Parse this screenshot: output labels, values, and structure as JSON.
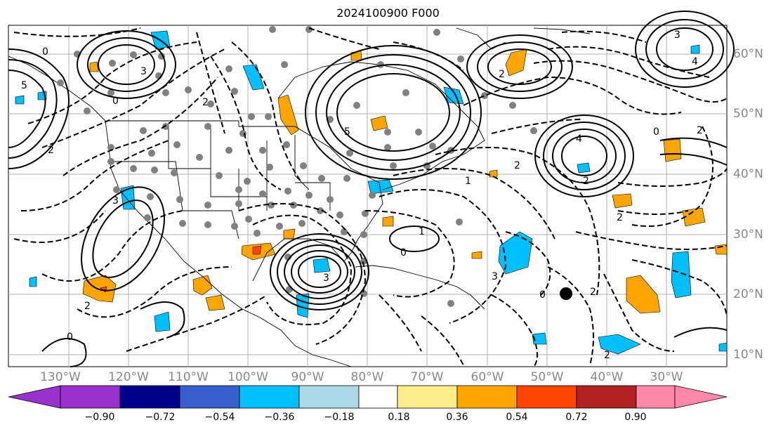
{
  "title": "2024100900 F000",
  "lon_labels": [
    "130°W",
    "120°W",
    "110°W",
    "100°W",
    "90°W",
    "80°W",
    "70°W",
    "60°W",
    "50°W",
    "40°W",
    "30°W"
  ],
  "lat_labels": [
    "60°N",
    "50°N",
    "40°N",
    "30°N",
    "20°N",
    "10°N"
  ],
  "colorbar": {
    "ticks": [
      "−0.90",
      "−0.72",
      "−0.54",
      "−0.36",
      "−0.18",
      "0.18",
      "0.36",
      "0.54",
      "0.72",
      "0.90"
    ],
    "colors": [
      "#9932cc",
      "#00008b",
      "#3a5fcd",
      "#00bfff",
      "#add8e6",
      "#ffffff",
      "#ffec8b",
      "#ffa500",
      "#ff4500",
      "#b22222",
      "#ff88aa"
    ]
  },
  "contour_labels": [
    "0",
    "5",
    "3",
    "0",
    "2",
    "3",
    "2",
    "5",
    "4",
    "2",
    "0",
    "2",
    "2",
    "2",
    "3",
    "1",
    "0",
    "0",
    "2",
    "3",
    "4",
    "2",
    "1",
    "2",
    "0",
    "3",
    "2"
  ],
  "marker": "storm-center-dot"
}
